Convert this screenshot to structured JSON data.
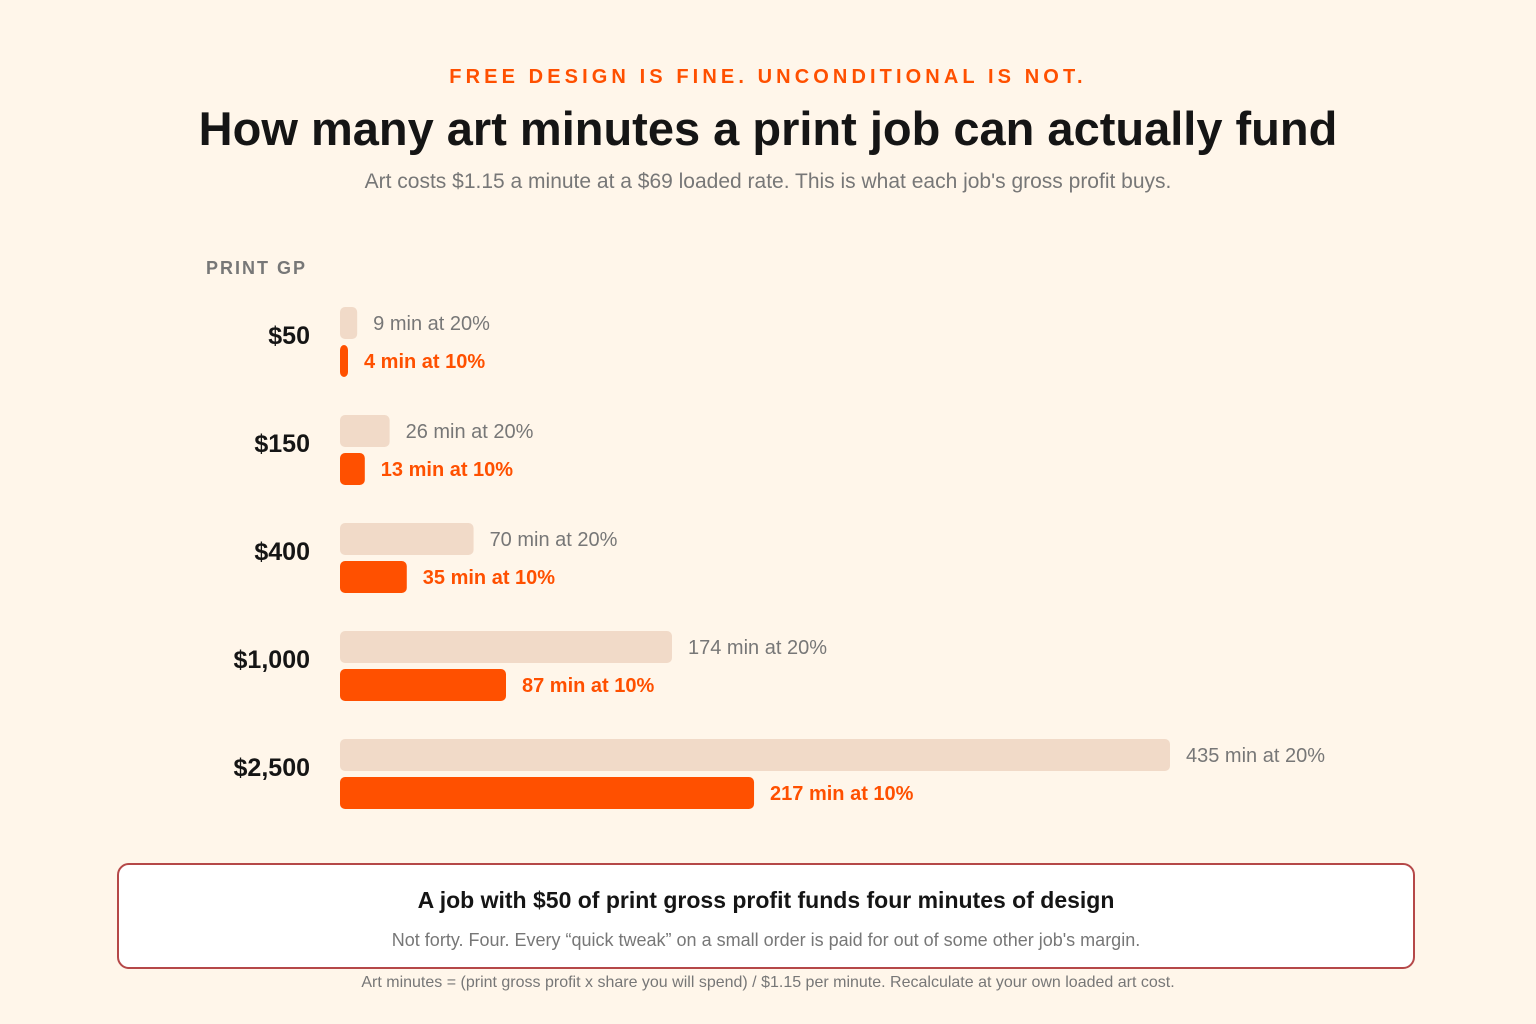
{
  "header": {
    "eyebrow": "FREE DESIGN IS FINE. UNCONDITIONAL IS NOT.",
    "title": "How many art minutes a print job can actually fund",
    "subtitle": "Art costs $1.15 a minute at a $69 loaded rate. This is what each job's gross profit buys."
  },
  "chart_data": {
    "type": "bar",
    "orientation": "horizontal",
    "ylabel": "PRINT GP",
    "categories": [
      "$50",
      "$150",
      "$400",
      "$1,000",
      "$2,500"
    ],
    "series": [
      {
        "name": "at 20%",
        "values": [
          9,
          26,
          70,
          174,
          435
        ],
        "labels": [
          "9 min at 20%",
          "26 min at 20%",
          "70 min at 20%",
          "174 min at 20%",
          "435 min at 20%"
        ],
        "color": "#f1dac8"
      },
      {
        "name": "at 10%",
        "values": [
          4,
          13,
          35,
          87,
          217
        ],
        "labels": [
          "4 min at 10%",
          "13 min at 10%",
          "35 min at 10%",
          "87 min at 10%",
          "217 min at 10%"
        ],
        "color": "#ff5000"
      }
    ],
    "xlim": [
      0,
      435
    ],
    "grid": false,
    "legend": "none"
  },
  "callout": {
    "title": "A job with $50 of print gross profit funds four minutes of design",
    "body": "Not forty. Four. Every “quick tweak” on a small order is paid for out of some other job's margin."
  },
  "footnote": "Art minutes = (print gross profit x share you will spend) / $1.15 per minute. Recalculate at your own loaded art cost.",
  "colors": {
    "background": "#fff6ea",
    "accent": "#ff5000",
    "muted_bar": "#f1dac8",
    "callout_border": "#b54848",
    "muted_text": "#777777",
    "text": "#151515"
  }
}
